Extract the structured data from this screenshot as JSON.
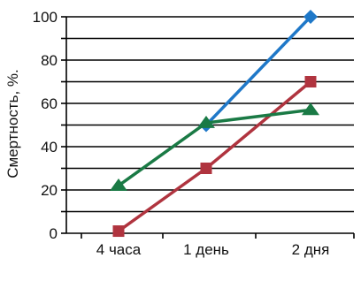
{
  "chart_data": {
    "type": "line",
    "title": "",
    "xlabel": "",
    "ylabel": "Смертность, %.",
    "categories": [
      "4 часа",
      "1 день",
      "2 дня"
    ],
    "ylim": [
      0,
      100
    ],
    "yticks": [
      0,
      20,
      40,
      60,
      80,
      100
    ],
    "grid": true,
    "legend": "none",
    "series": [
      {
        "values": [
          null,
          50,
          100
        ],
        "color": "#1f78c8",
        "marker": "diamond"
      },
      {
        "values": [
          1,
          30,
          70
        ],
        "color": "#b0343f",
        "marker": "square"
      },
      {
        "values": [
          22,
          51,
          57
        ],
        "color": "#1a7a45",
        "marker": "triangle"
      }
    ]
  }
}
